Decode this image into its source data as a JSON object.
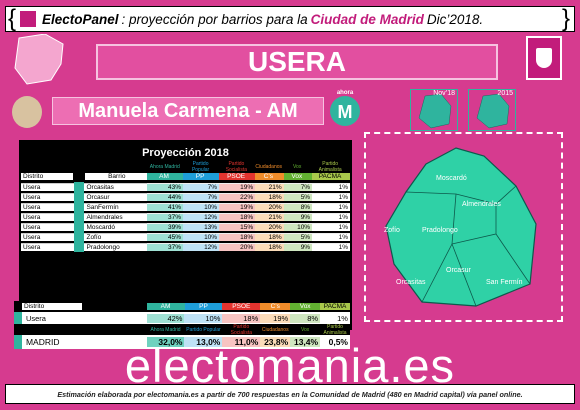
{
  "header": {
    "brand": "ElectoPanel",
    "intro": "proyección por barrios para la",
    "region": "Ciudad de Madrid",
    "date": "Dic’2018."
  },
  "district": "USERA",
  "candidate": "Manuela Carmena - AM",
  "party_logo": {
    "small": "ahora",
    "big": "M"
  },
  "mini_maps": [
    {
      "label": "Nov’18"
    },
    {
      "label": "2015"
    }
  ],
  "table": {
    "title": "Proyección 2018",
    "party_labels": [
      "Ahora Madrid",
      "Partido Popular",
      "Partido Socialista",
      "Ciudadanos",
      "Vox",
      "Partido Animalista"
    ],
    "headers": [
      "Distrito",
      "Barrio",
      "AM",
      "PP",
      "PSOE",
      "C’s",
      "Vox",
      "PACMA"
    ],
    "rows": [
      [
        "Usera",
        "Orcasitas",
        "43%",
        "7%",
        "19%",
        "21%",
        "7%",
        "1%"
      ],
      [
        "Usera",
        "Orcasur",
        "44%",
        "7%",
        "22%",
        "18%",
        "5%",
        "1%"
      ],
      [
        "Usera",
        "SanFermín",
        "41%",
        "10%",
        "19%",
        "20%",
        "8%",
        "1%"
      ],
      [
        "Usera",
        "Almendrales",
        "37%",
        "12%",
        "18%",
        "21%",
        "9%",
        "1%"
      ],
      [
        "Usera",
        "Moscardó",
        "39%",
        "13%",
        "15%",
        "20%",
        "10%",
        "1%"
      ],
      [
        "Usera",
        "Zofío",
        "45%",
        "10%",
        "18%",
        "18%",
        "5%",
        "1%"
      ],
      [
        "Usera",
        "Pradolongo",
        "37%",
        "12%",
        "20%",
        "18%",
        "9%",
        "1%"
      ]
    ],
    "sum_headers": [
      "Distrito",
      "AM",
      "PP",
      "PSOE",
      "C’s",
      "Vox",
      "PACMA"
    ],
    "sum_row": [
      "Usera",
      "42%",
      "10%",
      "18%",
      "19%",
      "8%",
      "1%"
    ],
    "madrid_row": [
      "MADRID",
      "32,0%",
      "13,0%",
      "11,0%",
      "23,8%",
      "13,4%",
      "0,5%"
    ]
  },
  "map_labels": [
    "Moscardó",
    "Almendrales",
    "Zofío",
    "Pradolongo",
    "Orcasur",
    "Orcasitas",
    "San Fermín"
  ],
  "watermark": "electomania.es",
  "footer": "Estimación elaborada por electomania.es a partir de 700 respuestas en la Comunidad de Madrid (480 en Madrid capital) vía panel online.",
  "colors": {
    "am": "#2fb49e",
    "pp": "#1e9ed9",
    "psoe": "#e3342f",
    "cs": "#f08c2a",
    "vox": "#62b131",
    "pacma": "#a9c84b",
    "pink": "#d63b8f"
  }
}
